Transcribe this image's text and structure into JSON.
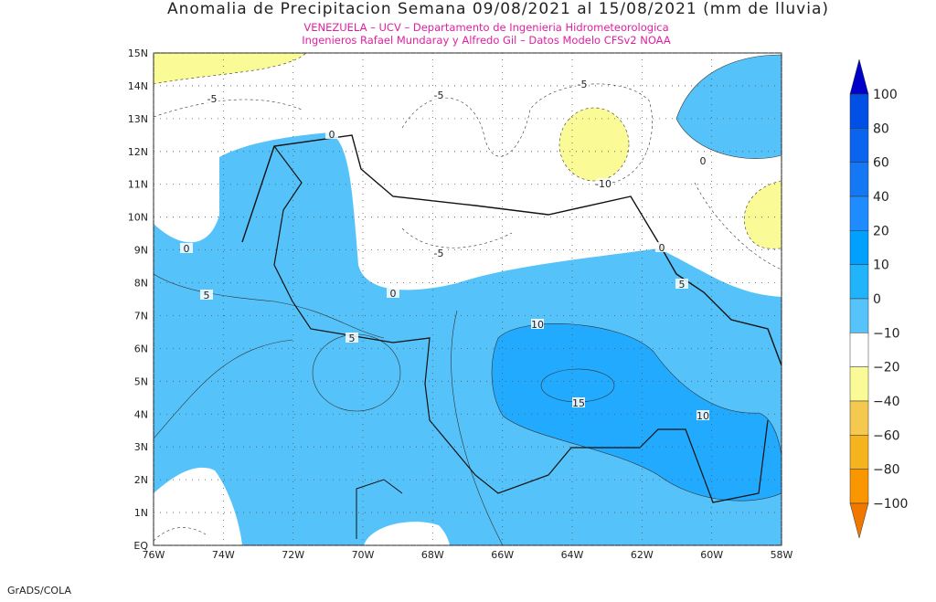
{
  "title": "Anomalia de Precipitacion Semana 09/08/2021 al 15/08/2021 (mm de lluvia)",
  "subtitle_lines": [
    "VENEZUELA – UCV – Departamento de Ingenieria Hidrometeorologica",
    "Ingenieros Rafael Mundaray y Alfredo Gil – Datos Modelo CFSv2 NOAA"
  ],
  "lat_labels": [
    "15N",
    "14N",
    "13N",
    "12N",
    "11N",
    "10N",
    "9N",
    "8N",
    "7N",
    "6N",
    "5N",
    "4N",
    "3N",
    "2N",
    "1N",
    "EQ"
  ],
  "lon_labels": [
    "76W",
    "74W",
    "72W",
    "70W",
    "68W",
    "66W",
    "64W",
    "62W",
    "60W",
    "58W"
  ],
  "colorbar": {
    "labels": [
      "100",
      "80",
      "60",
      "40",
      "20",
      "10",
      "0",
      "−10",
      "−20",
      "−40",
      "−60",
      "−80",
      "−100"
    ],
    "colors": [
      "#0000c8",
      "#0050e6",
      "#0a64f0",
      "#1478f5",
      "#1e8cff",
      "#00a0ff",
      "#22b4fa",
      "#56c4fa",
      "#ffffff",
      "#fafa96",
      "#f5c850",
      "#f5b41e",
      "#fa9600",
      "#fa8200",
      "#f07800"
    ]
  },
  "contour_labels": [
    "-5",
    "0",
    "-5",
    "-5",
    "0",
    "0",
    "5",
    "0",
    "-5",
    "0",
    "5",
    "10",
    "5",
    "15",
    "10",
    "-10"
  ],
  "credit": "GrADS/COLA"
}
